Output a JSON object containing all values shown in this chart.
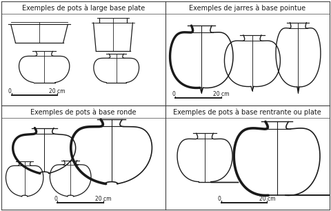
{
  "bg_color": "#ffffff",
  "line_color": "#1a1a1a",
  "title_fontsize": 7.0,
  "scale_fontsize": 5.5,
  "panels": [
    {
      "title": "Exemples de pots à large base plate"
    },
    {
      "title": "Exemples de jarres à base pointue"
    },
    {
      "title": "Exemples de pots à base ronde"
    },
    {
      "title": "Exemples de pots à base rentrante ou plate"
    }
  ]
}
